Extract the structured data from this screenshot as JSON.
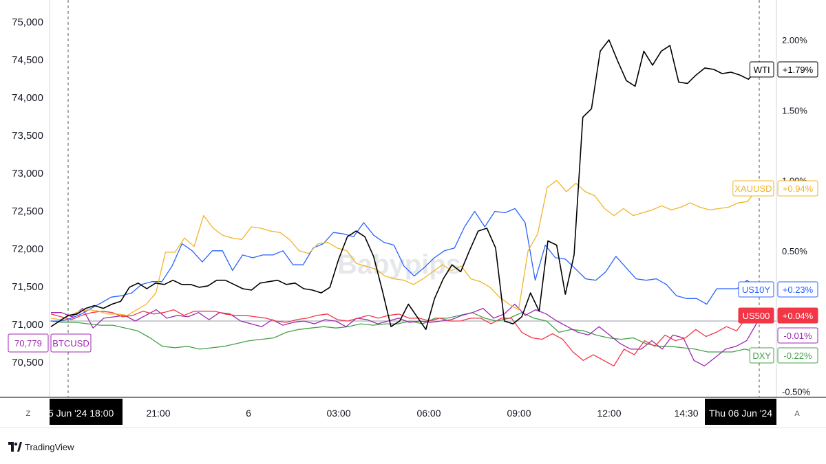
{
  "watermark": "Babypips",
  "footer": {
    "brand": "TradingView"
  },
  "controls": {
    "left": "Z",
    "right": "A"
  },
  "chart_data": {
    "type": "line",
    "left_axis": {
      "ticks": [
        "75,000",
        "74,500",
        "74,000",
        "73,500",
        "73,000",
        "72,500",
        "72,000",
        "71,500",
        "71,000",
        "70,500"
      ],
      "tick_values": [
        75000,
        74500,
        74000,
        73500,
        73000,
        72500,
        72000,
        71500,
        71000,
        70500
      ]
    },
    "right_axis": {
      "ticks": [
        "2.00%",
        "1.50%",
        "1.00%",
        "0.50%",
        "-0.50%"
      ],
      "tick_values": [
        2.0,
        1.5,
        1.0,
        0.5,
        -0.5
      ]
    },
    "x_axis": {
      "ticks": [
        "21:00",
        "6",
        "03:00",
        "06:00",
        "09:00",
        "12:00",
        "14:30"
      ],
      "start_label": "5 Jun '24   18:00",
      "end_label": "Thu 06 Jun '24"
    },
    "range": {
      "pct_min": -0.5,
      "pct_max": 2.0
    },
    "series": [
      {
        "name": "WTI",
        "color": "#000000",
        "change": "+1.79%",
        "values": [
          -0.04,
          0.0,
          0.04,
          0.05,
          0.09,
          0.11,
          0.09,
          0.12,
          0.14,
          0.24,
          0.27,
          0.23,
          0.27,
          0.26,
          0.29,
          0.26,
          0.26,
          0.24,
          0.25,
          0.29,
          0.29,
          0.26,
          0.23,
          0.22,
          0.27,
          0.28,
          0.29,
          0.26,
          0.27,
          0.23,
          0.22,
          0.2,
          0.24,
          0.44,
          0.6,
          0.64,
          0.6,
          0.46,
          0.22,
          -0.04,
          0.0,
          0.12,
          0.03,
          -0.06,
          0.16,
          0.3,
          0.4,
          0.35,
          0.5,
          0.64,
          0.66,
          0.52,
          0.0,
          -0.02,
          0.03,
          0.2,
          0.07,
          0.57,
          0.54,
          0.19,
          0.47,
          1.45,
          1.51,
          1.92,
          2.0,
          1.85,
          1.71,
          1.67,
          1.92,
          1.82,
          1.92,
          1.96,
          1.7,
          1.69,
          1.75,
          1.8,
          1.79,
          1.76,
          1.77,
          1.75,
          1.72,
          1.79
        ]
      },
      {
        "name": "XAUUSD",
        "color": "#f0b429",
        "change": "+0.94%",
        "values": [
          0.02,
          0.01,
          0.04,
          0.07,
          0.08,
          0.07,
          0.05,
          0.05,
          0.04,
          0.08,
          0.12,
          0.2,
          0.49,
          0.49,
          0.59,
          0.53,
          0.75,
          0.66,
          0.61,
          0.59,
          0.58,
          0.67,
          0.66,
          0.64,
          0.63,
          0.58,
          0.5,
          0.48,
          0.55,
          0.56,
          0.52,
          0.5,
          0.41,
          0.39,
          0.37,
          0.32,
          0.3,
          0.29,
          0.26,
          0.3,
          0.35,
          0.4,
          0.36,
          0.39,
          0.3,
          0.28,
          0.24,
          0.17,
          0.12,
          0.08,
          0.5,
          0.62,
          0.95,
          1.0,
          0.92,
          0.98,
          0.92,
          0.89,
          0.8,
          0.75,
          0.8,
          0.75,
          0.77,
          0.79,
          0.82,
          0.79,
          0.81,
          0.84,
          0.81,
          0.79,
          0.8,
          0.81,
          0.84,
          0.85,
          0.94
        ]
      },
      {
        "name": "US10Y",
        "color": "#2962ff",
        "change": "+0.23%",
        "values": [
          0.0,
          0.0,
          0.02,
          0.05,
          0.09,
          0.13,
          0.17,
          0.18,
          0.2,
          0.26,
          0.28,
          0.28,
          0.39,
          0.55,
          0.5,
          0.42,
          0.5,
          0.5,
          0.36,
          0.47,
          0.45,
          0.47,
          0.47,
          0.5,
          0.4,
          0.4,
          0.52,
          0.55,
          0.63,
          0.62,
          0.6,
          0.7,
          0.61,
          0.56,
          0.54,
          0.39,
          0.32,
          0.38,
          0.45,
          0.5,
          0.52,
          0.67,
          0.78,
          0.67,
          0.78,
          0.77,
          0.8,
          0.7,
          0.29,
          0.54,
          0.45,
          0.44,
          0.37,
          0.3,
          0.29,
          0.35,
          0.46,
          0.38,
          0.3,
          0.29,
          0.3,
          0.26,
          0.18,
          0.16,
          0.16,
          0.12,
          0.23,
          0.23,
          0.23,
          0.29,
          0.23
        ]
      },
      {
        "name": "US500",
        "color": "#f23645",
        "change": "+0.04%",
        "values": [
          0.05,
          0.03,
          0.01,
          0.04,
          0.06,
          0.07,
          0.06,
          0.03,
          0.04,
          0.07,
          0.05,
          0.06,
          0.08,
          0.04,
          0.07,
          0.07,
          0.07,
          0.05,
          0.04,
          0.04,
          0.03,
          0.02,
          0.0,
          -0.01,
          0.01,
          0.02,
          0.04,
          0.05,
          0.01,
          0.0,
          0.02,
          0.04,
          0.02,
          0.04,
          0.05,
          0.02,
          0.02,
          0.0,
          0.02,
          0.0,
          0.0,
          0.02,
          0.02,
          -0.02,
          0.02,
          0.02,
          -0.08,
          -0.12,
          -0.13,
          -0.09,
          -0.13,
          -0.22,
          -0.28,
          -0.24,
          -0.28,
          -0.32,
          -0.2,
          -0.24,
          -0.14,
          -0.18,
          -0.1,
          -0.14,
          -0.12,
          -0.06,
          -0.11,
          -0.08,
          -0.04,
          -0.07,
          0.03,
          0.04
        ]
      },
      {
        "name": "BTCUSD",
        "color": "#9c27b0",
        "change": "-0.01%",
        "current": "70,779",
        "values": [
          0.06,
          0.06,
          0.03,
          0.09,
          -0.05,
          0.02,
          0.03,
          0.04,
          0.0,
          0.04,
          0.08,
          0.02,
          0.04,
          0.03,
          0.06,
          0.01,
          0.06,
          0.05,
          0.0,
          -0.02,
          -0.04,
          0.01,
          -0.03,
          -0.01,
          0.0,
          -0.02,
          0.01,
          0.0,
          -0.04,
          0.02,
          0.01,
          -0.02,
          0.0,
          0.02,
          -0.01,
          0.0,
          -0.01,
          0.0,
          0.01,
          0.04,
          0.06,
          0.09,
          0.02,
          0.05,
          0.12,
          0.04,
          0.08,
          0.05,
          0.0,
          -0.04,
          -0.08,
          -0.1,
          -0.04,
          -0.1,
          -0.16,
          -0.2,
          -0.2,
          -0.14,
          -0.2,
          -0.1,
          -0.12,
          -0.28,
          -0.32,
          -0.26,
          -0.2,
          -0.18,
          -0.14,
          -0.01
        ]
      },
      {
        "name": "DXY",
        "color": "#43a047",
        "change": "-0.22%",
        "values": [
          0.0,
          -0.01,
          -0.01,
          -0.02,
          -0.03,
          -0.03,
          -0.05,
          -0.07,
          -0.12,
          -0.18,
          -0.19,
          -0.18,
          -0.2,
          -0.19,
          -0.18,
          -0.16,
          -0.14,
          -0.13,
          -0.12,
          -0.08,
          -0.06,
          -0.05,
          -0.04,
          -0.05,
          -0.04,
          -0.02,
          -0.03,
          -0.02,
          -0.02,
          0.0,
          -0.02,
          0.02,
          0.02,
          0.04,
          0.06,
          0.02,
          0.0,
          0.02,
          0.06,
          0.02,
          0.0,
          -0.08,
          -0.06,
          -0.07,
          -0.1,
          -0.12,
          -0.13,
          -0.12,
          -0.16,
          -0.18,
          -0.18,
          -0.19,
          -0.2,
          -0.22,
          -0.22,
          -0.22,
          -0.2,
          -0.22
        ]
      }
    ]
  }
}
